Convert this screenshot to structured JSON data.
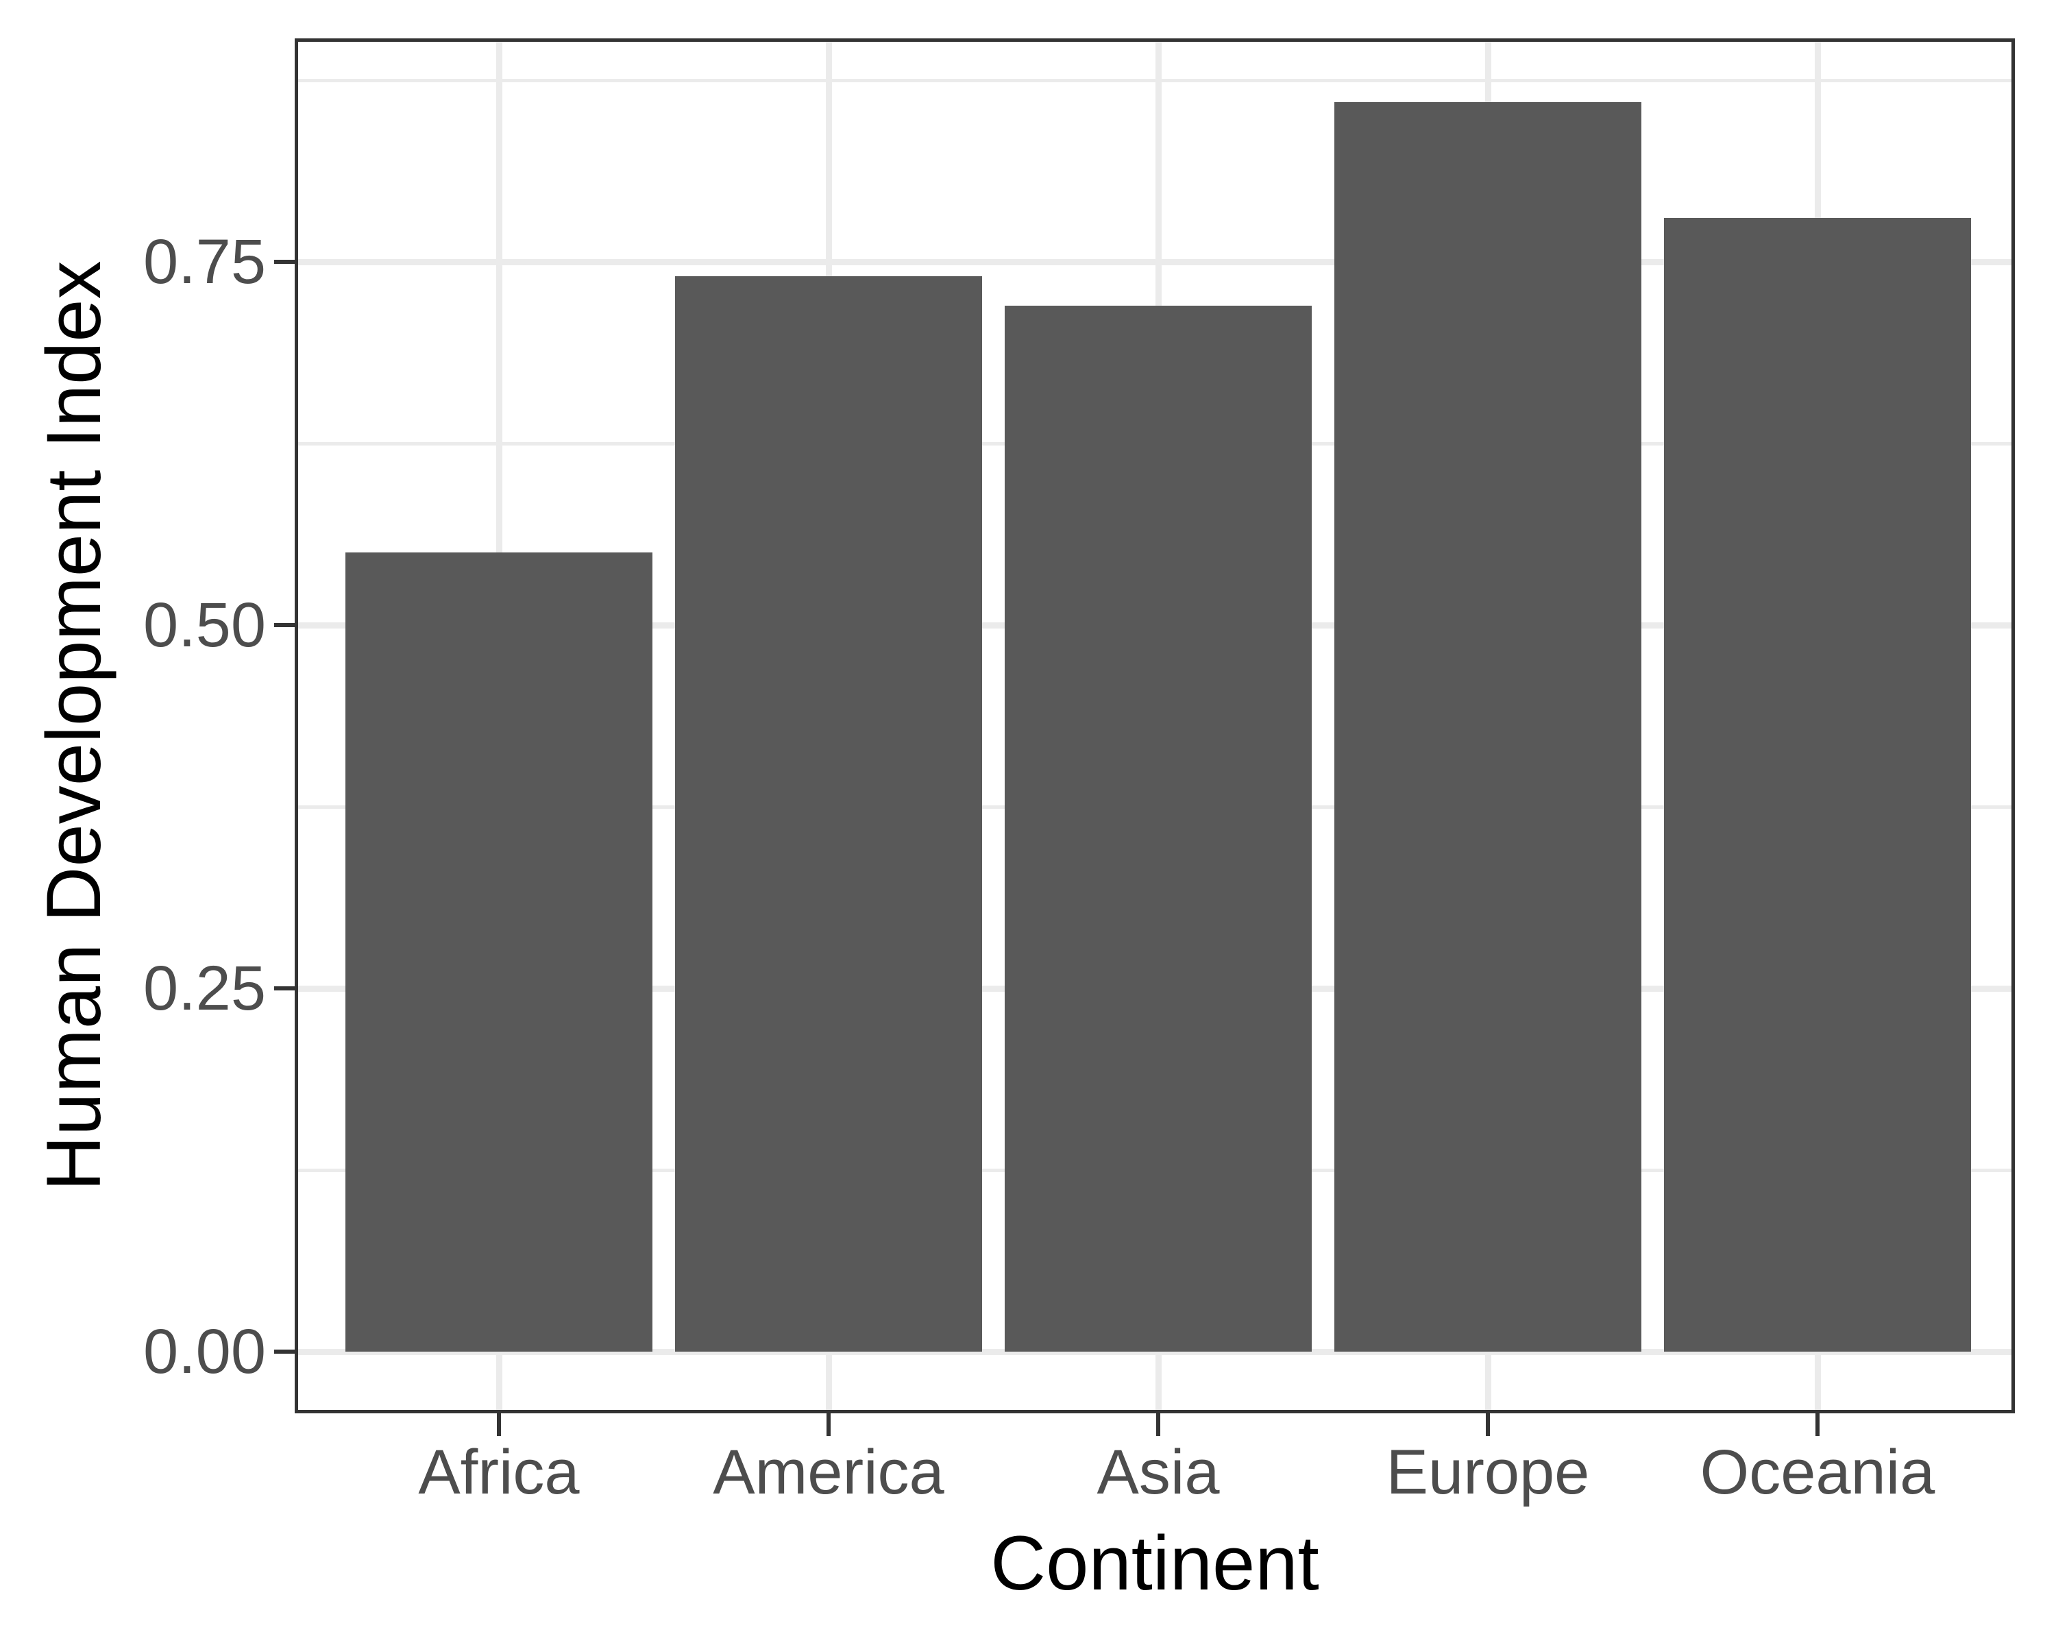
{
  "chart_data": {
    "type": "bar",
    "title": "",
    "categories": [
      "Africa",
      "America",
      "Asia",
      "Europe",
      "Oceania"
    ],
    "values": [
      0.55,
      0.74,
      0.72,
      0.86,
      0.78
    ],
    "xlabel": "Continent",
    "ylabel": "Human Development Index",
    "ylim": [
      -0.043,
      0.903
    ],
    "y_tick_labels": [
      "0.00",
      "0.25",
      "0.50",
      "0.75"
    ],
    "y_tick_values": [
      0,
      0.25,
      0.5,
      0.75
    ],
    "y_minor_tick_values": [
      0.125,
      0.375,
      0.625,
      0.875
    ],
    "grid": "major-and-minor-horizontal, major-vertical-at-category-centers",
    "legend_position": "none",
    "colors": {
      "bar_fill": "#595959",
      "panel_background": "#FFFFFF",
      "figure_background": "#FFFFFF",
      "gridline": "#EBEBEB",
      "panel_border": "#333333",
      "axis_tick": "#333333",
      "tick_label_text": "#4D4D4D",
      "axis_title_text": "#000000"
    }
  }
}
